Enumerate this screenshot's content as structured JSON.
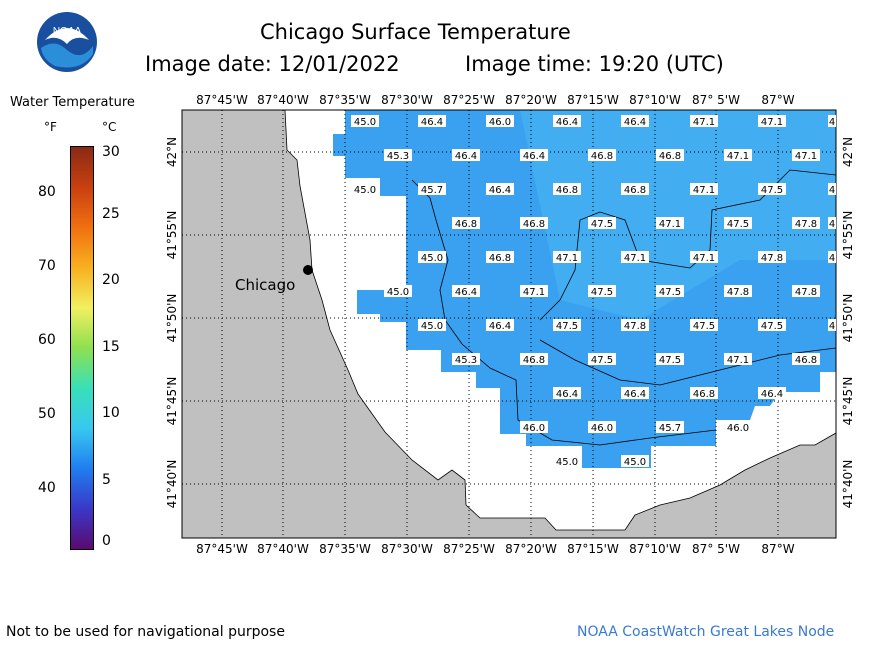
{
  "header": {
    "title": "Chicago Surface Temperature",
    "image_date": "Image date: 12/01/2022",
    "image_time": "Image time: 19:20 (UTC)"
  },
  "legend": {
    "title": "Water Temperature",
    "unit_f": "°F",
    "unit_c": "°C",
    "ticks_f": [
      "80",
      "70",
      "60",
      "50",
      "40"
    ],
    "ticks_c": [
      "30",
      "25",
      "20",
      "15",
      "10",
      "5",
      "0"
    ],
    "colors": [
      "#5a0a6e",
      "#3a38c8",
      "#1f7ef0",
      "#38c8f0",
      "#38e0b8",
      "#8ee050",
      "#f0f060",
      "#f8b020",
      "#f07010",
      "#c84010",
      "#8a2a14"
    ]
  },
  "map": {
    "city_label": "Chicago",
    "lon_labels": [
      "87°45'W",
      "87°40'W",
      "87°35'W",
      "87°30'W",
      "87°25'W",
      "87°20'W",
      "87°15'W",
      "87°10'W",
      "87° 5'W",
      "87°W"
    ],
    "lat_labels": [
      "42°N",
      "41°55'N",
      "41°50'N",
      "41°45'N",
      "41°40'N"
    ],
    "land_color": "#c0c0c0",
    "water_color": "#3aa0f0",
    "temperatures": [
      {
        "row": 0,
        "values": [
          "45.0",
          "46.4",
          "46.0",
          "46.4",
          "46.4",
          "47.1",
          "47.1",
          "4"
        ]
      },
      {
        "row": 1,
        "values": [
          "45.3",
          "46.4",
          "46.4",
          "46.8",
          "46.8",
          "47.1",
          "47.1"
        ]
      },
      {
        "row": 2,
        "values": [
          "45.0",
          "45.7",
          "46.4",
          "46.8",
          "46.8",
          "47.1",
          "47.5",
          "4"
        ]
      },
      {
        "row": 3,
        "values": [
          "46.8",
          "46.8",
          "47.5",
          "47.1",
          "47.5",
          "47.8",
          "4"
        ]
      },
      {
        "row": 4,
        "values": [
          "45.0",
          "46.8",
          "47.1",
          "47.1",
          "47.1",
          "47.8",
          "4"
        ]
      },
      {
        "row": 5,
        "values": [
          "45.0",
          "46.4",
          "47.1",
          "47.5",
          "47.5",
          "47.8",
          "47.8"
        ]
      },
      {
        "row": 6,
        "values": [
          "45.0",
          "46.4",
          "47.5",
          "47.8",
          "47.5",
          "47.5",
          "4"
        ]
      },
      {
        "row": 7,
        "values": [
          "45.3",
          "46.8",
          "47.5",
          "47.5",
          "47.1",
          "46.8"
        ]
      },
      {
        "row": 8,
        "values": [
          "46.4",
          "46.4",
          "46.8",
          "46.4"
        ]
      },
      {
        "row": 9,
        "values": [
          "46.0",
          "46.0",
          "45.7",
          "46.0"
        ]
      },
      {
        "row": 10,
        "values": [
          "45.0",
          "45.0"
        ]
      }
    ]
  },
  "footer": {
    "disclaimer": "Not to be used for navigational purpose",
    "credit": "NOAA CoastWatch Great Lakes Node"
  },
  "logo": {
    "text": "NOAA"
  }
}
